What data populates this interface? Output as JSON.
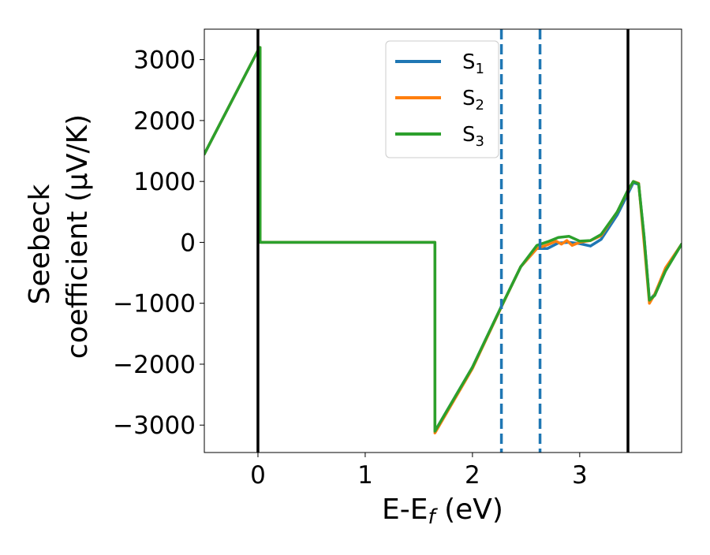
{
  "chart_data": {
    "type": "line",
    "title": "",
    "xlabel": "E-E",
    "xlabel_sub": "f",
    "xlabel_unit": " (eV)",
    "ylabel_line1": "Seebeck",
    "ylabel_line2": "coefficient  (μV/K)",
    "xlim": [
      -0.5,
      3.95
    ],
    "ylim": [
      -3450,
      3500
    ],
    "xticks": [
      0,
      1,
      2,
      3
    ],
    "yticks": [
      -3000,
      -2000,
      -1000,
      0,
      1000,
      2000,
      3000
    ],
    "ytick_labels": [
      "−3000",
      "−2000",
      "−1000",
      "0",
      "1000",
      "2000",
      "3000"
    ],
    "grid": false,
    "legend_position": "top-center",
    "vertical_lines": [
      {
        "x": 0.0,
        "style": "solid",
        "color": "#000000"
      },
      {
        "x": 3.45,
        "style": "solid",
        "color": "#000000"
      },
      {
        "x": 2.27,
        "style": "dashed",
        "color": "#1f77b4"
      },
      {
        "x": 2.63,
        "style": "dashed",
        "color": "#1f77b4"
      }
    ],
    "series": [
      {
        "name": "S",
        "sub": "1",
        "color": "#1f77b4",
        "x": [
          -0.5,
          0.0,
          0.02,
          0.02,
          1.65,
          1.65,
          2.0,
          2.27,
          2.45,
          2.6,
          2.7,
          2.8,
          2.9,
          3.0,
          3.1,
          3.2,
          3.35,
          3.45,
          3.5,
          3.55,
          3.6,
          3.65,
          3.7,
          3.8,
          3.95
        ],
        "y": [
          1450,
          3150,
          3200,
          0,
          0,
          -3100,
          -2050,
          -1050,
          -400,
          -100,
          -100,
          -10,
          0,
          -20,
          -60,
          50,
          450,
          800,
          980,
          950,
          100,
          -950,
          -850,
          -450,
          -30
        ]
      },
      {
        "name": "S",
        "sub": "2",
        "color": "#ff7f0e",
        "x": [
          -0.5,
          0.0,
          0.02,
          0.02,
          1.65,
          1.65,
          2.0,
          2.27,
          2.45,
          2.6,
          2.7,
          2.78,
          2.83,
          2.88,
          2.93,
          3.0,
          3.1,
          3.2,
          3.35,
          3.45,
          3.5,
          3.55,
          3.6,
          3.65,
          3.7,
          3.8,
          3.95
        ],
        "y": [
          1450,
          3150,
          3200,
          0,
          0,
          -3130,
          -2070,
          -1060,
          -400,
          -100,
          -40,
          20,
          -30,
          30,
          -50,
          0,
          30,
          110,
          500,
          850,
          1000,
          970,
          0,
          -1000,
          -850,
          -420,
          -30
        ]
      },
      {
        "name": "S",
        "sub": "3",
        "color": "#2ca02c",
        "x": [
          -0.5,
          0.0,
          0.02,
          0.02,
          1.65,
          1.65,
          2.0,
          2.27,
          2.45,
          2.6,
          2.7,
          2.8,
          2.9,
          3.0,
          3.1,
          3.2,
          3.35,
          3.45,
          3.5,
          3.55,
          3.6,
          3.65,
          3.7,
          3.8,
          3.95
        ],
        "y": [
          1450,
          3150,
          3200,
          0,
          0,
          -3100,
          -2050,
          -1050,
          -400,
          -50,
          10,
          80,
          100,
          20,
          30,
          130,
          500,
          860,
          1000,
          960,
          100,
          -950,
          -870,
          -470,
          -30
        ]
      }
    ]
  }
}
